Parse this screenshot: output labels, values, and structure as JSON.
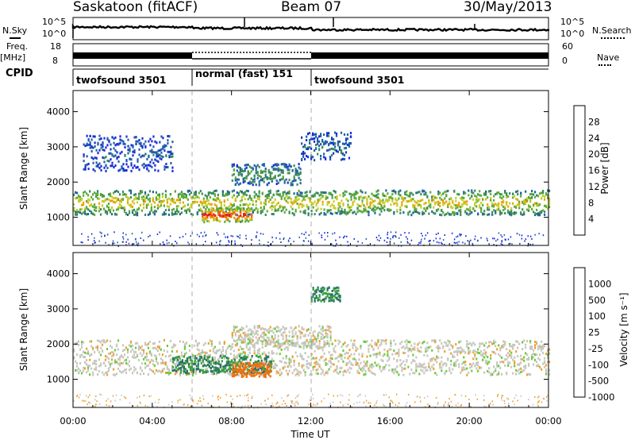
{
  "header": {
    "station": "Saskatoon (fitACF)",
    "beam": "Beam 07",
    "date": "30/May/2013"
  },
  "strip_labels": {
    "nsky": "N.Sky",
    "nsky_ticks": [
      "10^5",
      "10^0"
    ],
    "nsearch": "N.Search",
    "nsearch_ticks": [
      "10^5",
      "10^0"
    ],
    "freq": "Freq.",
    "freq_unit": "[MHz]",
    "freq_ticks": [
      "18",
      "8"
    ],
    "nave": "Nave",
    "nave_ticks": [
      "60",
      "0"
    ],
    "cpid": "CPID"
  },
  "cpid_segments": [
    {
      "label": "twofsound 3501",
      "start": 0,
      "end": 6
    },
    {
      "label": "normal (fast) 151",
      "start": 6,
      "end": 12
    },
    {
      "label": "twofsound 3501",
      "start": 12,
      "end": 24
    }
  ],
  "x_axis": {
    "label": "Time UT",
    "ticks": [
      "00:00",
      "04:00",
      "08:00",
      "12:00",
      "16:00",
      "20:00",
      "00:00"
    ],
    "range_hours": [
      0,
      24
    ]
  },
  "chart_data": [
    {
      "type": "heatmap",
      "name": "power",
      "ylabel": "Slant Range [km]",
      "yticks": [
        "1000",
        "2000",
        "3000",
        "4000"
      ],
      "ylim": [
        200,
        4600
      ],
      "colorbar": {
        "label": "Power [dB]",
        "ticks": [
          "4",
          "8",
          "12",
          "16",
          "20",
          "24",
          "28"
        ],
        "colors": [
          "#1a2adb",
          "#2060a8",
          "#3a8a5a",
          "#5aaa3a",
          "#c8cc2a",
          "#f0a000",
          "#f06010",
          "#e02010"
        ]
      },
      "layers": [
        {
          "range_center": 1400,
          "half_width": 350,
          "t_start": 0,
          "t_end": 24,
          "intensity": 20
        },
        {
          "range_center": 1050,
          "half_width": 200,
          "t_start": 6.5,
          "t_end": 9,
          "intensity": 30
        },
        {
          "range_center": 2200,
          "half_width": 300,
          "t_start": 8,
          "t_end": 11.5,
          "intensity": 12
        },
        {
          "range_center": 3000,
          "half_width": 400,
          "t_start": 11.5,
          "t_end": 14,
          "intensity": 8
        },
        {
          "range_center": 2800,
          "half_width": 500,
          "t_start": 0.5,
          "t_end": 5,
          "intensity": 6
        }
      ]
    },
    {
      "type": "heatmap",
      "name": "velocity",
      "ylabel": "Slant Range [km]",
      "yticks": [
        "1000",
        "2000",
        "3000",
        "4000"
      ],
      "ylim": [
        200,
        4600
      ],
      "colorbar": {
        "label": "Velocity [m s⁻¹]",
        "ticks": [
          "1000",
          "500",
          "100",
          "25",
          "-25",
          "-100",
          "-500",
          "-1000"
        ],
        "colors": [
          "#1e30c8",
          "#2a6e6e",
          "#3aa040",
          "#6ccc3a",
          "#c8c8c0",
          "#f0a030",
          "#f07010",
          "#e01010"
        ]
      },
      "layers": [
        {
          "range_center": 1600,
          "half_width": 500,
          "t_start": 0,
          "t_end": 24,
          "velocity": 0
        },
        {
          "range_center": 1400,
          "half_width": 250,
          "t_start": 5,
          "t_end": 10,
          "velocity": 300
        },
        {
          "range_center": 1250,
          "half_width": 200,
          "t_start": 8,
          "t_end": 10,
          "velocity": -300
        },
        {
          "range_center": 2200,
          "half_width": 300,
          "t_start": 8,
          "t_end": 13,
          "velocity": 0
        },
        {
          "range_center": 3400,
          "half_width": 200,
          "t_start": 12,
          "t_end": 13.5,
          "velocity": 300
        }
      ]
    }
  ]
}
